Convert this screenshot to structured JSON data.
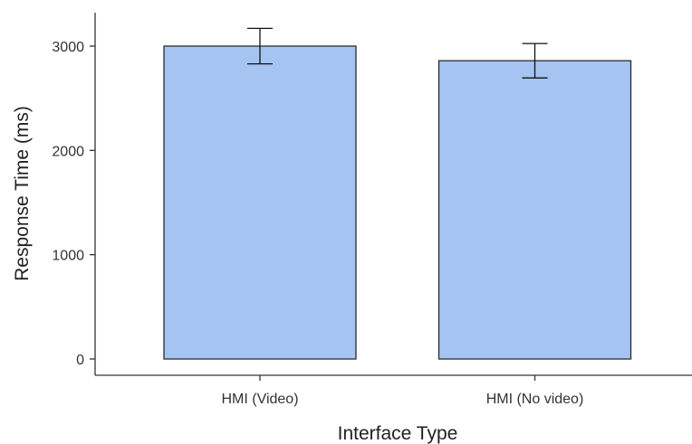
{
  "chart_data": {
    "type": "bar",
    "title": "",
    "xlabel": "Interface Type",
    "ylabel": "Response Time (ms)",
    "categories": [
      "HMI (Video)",
      "HMI (No video)"
    ],
    "values": [
      3000,
      2860
    ],
    "error_low": [
      2830,
      2695
    ],
    "error_high": [
      3170,
      3025
    ],
    "ylim": [
      0,
      3150
    ],
    "yticks": [
      0,
      1000,
      2000,
      3000
    ],
    "ytick_labels": [
      "0",
      "1000",
      "2000",
      "3000"
    ],
    "grid": false,
    "legend": "none",
    "colors": {
      "bar_fill": "#a6c4f2",
      "bar_stroke": "#2b2b2b",
      "axis": "#333333"
    }
  }
}
